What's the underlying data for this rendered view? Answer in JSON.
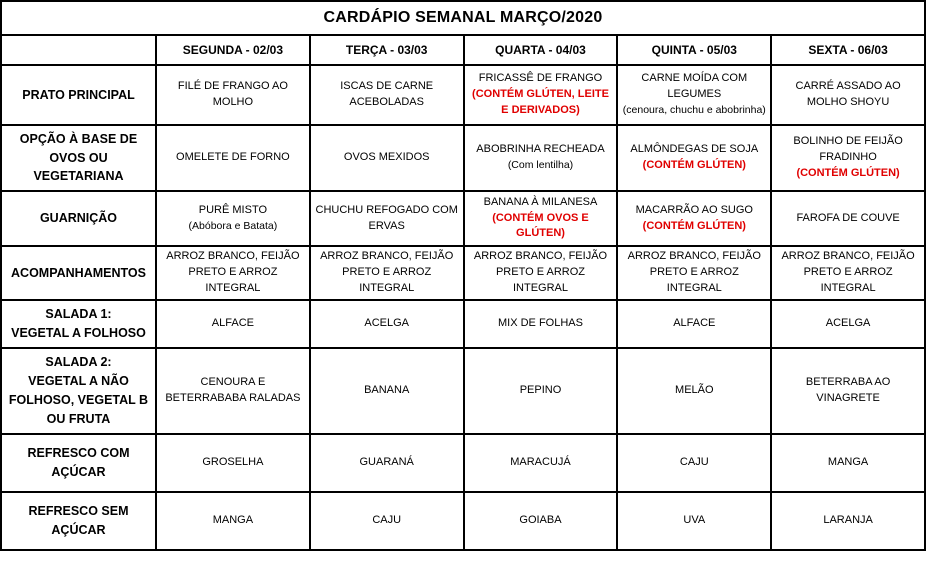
{
  "title": "CARDÁPIO SEMANAL MARÇO/2020",
  "colors": {
    "alert_red": "#e00000",
    "border_black": "#000000",
    "background": "#ffffff"
  },
  "table": {
    "day_headers": [
      "SEGUNDA - 02/03",
      "TERÇA - 03/03",
      "QUARTA - 04/03",
      "QUINTA - 05/03",
      "SEXTA - 06/03"
    ],
    "rows": [
      {
        "label_lines": [
          "PRATO PRINCIPAL"
        ],
        "cells": [
          [
            {
              "text": "FILÉ DE FRANGO AO MOLHO"
            }
          ],
          [
            {
              "text": "ISCAS DE CARNE ACEBOLADAS"
            }
          ],
          [
            {
              "text": "FRICASSÊ DE FRANGO"
            },
            {
              "text": "(CONTÉM GLÚTEN, LEITE E DERIVADOS)",
              "style": "red"
            }
          ],
          [
            {
              "text": "CARNE MOÍDA COM LEGUMES"
            },
            {
              "text": "(cenoura, chuchu e abobrinha)",
              "style": "small"
            }
          ],
          [
            {
              "text": "CARRÉ ASSADO AO MOLHO SHOYU"
            }
          ]
        ]
      },
      {
        "label_lines": [
          "OPÇÃO À BASE DE",
          "OVOS OU VEGETARIANA"
        ],
        "cells": [
          [
            {
              "text": "OMELETE DE FORNO"
            }
          ],
          [
            {
              "text": "OVOS MEXIDOS"
            }
          ],
          [
            {
              "text": "ABOBRINHA RECHEADA"
            },
            {
              "text": "(Com lentilha)",
              "style": "small"
            }
          ],
          [
            {
              "text": "ALMÔNDEGAS DE SOJA"
            },
            {
              "text": "(CONTÉM GLÚTEN)",
              "style": "red"
            }
          ],
          [
            {
              "text": "BOLINHO DE FEIJÃO FRADINHO"
            },
            {
              "text": "(CONTÉM GLÚTEN)",
              "style": "red"
            }
          ]
        ]
      },
      {
        "label_lines": [
          "GUARNIÇÃO"
        ],
        "cells": [
          [
            {
              "text": "PURÊ MISTO"
            },
            {
              "text": "(Abóbora e Batata)",
              "style": "small"
            }
          ],
          [
            {
              "text": "CHUCHU REFOGADO COM ERVAS"
            }
          ],
          [
            {
              "text": "BANANA À MILANESA"
            },
            {
              "text": "(CONTÉM OVOS E GLÚTEN)",
              "style": "red"
            }
          ],
          [
            {
              "text": "MACARRÃO AO SUGO"
            },
            {
              "text": "(CONTÉM GLÚTEN)",
              "style": "red"
            }
          ],
          [
            {
              "text": "FAROFA DE COUVE"
            }
          ]
        ]
      },
      {
        "label_lines": [
          "ACOMPANHAMENTOS"
        ],
        "cells": [
          [
            {
              "text": "ARROZ BRANCO, FEIJÃO PRETO E ARROZ INTEGRAL"
            }
          ],
          [
            {
              "text": "ARROZ BRANCO, FEIJÃO PRETO E ARROZ INTEGRAL"
            }
          ],
          [
            {
              "text": "ARROZ BRANCO, FEIJÃO PRETO E ARROZ INTEGRAL"
            }
          ],
          [
            {
              "text": "ARROZ BRANCO, FEIJÃO PRETO E ARROZ INTEGRAL"
            }
          ],
          [
            {
              "text": "ARROZ BRANCO, FEIJÃO PRETO E ARROZ INTEGRAL"
            }
          ]
        ]
      },
      {
        "label_lines": [
          "SALADA 1:",
          "VEGETAL A FOLHOSO"
        ],
        "cells": [
          [
            {
              "text": "ALFACE"
            }
          ],
          [
            {
              "text": "ACELGA"
            }
          ],
          [
            {
              "text": "MIX DE FOLHAS"
            }
          ],
          [
            {
              "text": "ALFACE"
            }
          ],
          [
            {
              "text": "ACELGA"
            }
          ]
        ]
      },
      {
        "label_lines": [
          "SALADA 2:",
          "VEGETAL A NÃO",
          "FOLHOSO, VEGETAL B",
          "OU FRUTA"
        ],
        "cells": [
          [
            {
              "text": "CENOURA E BETERRABABA RALADAS"
            }
          ],
          [
            {
              "text": "BANANA"
            }
          ],
          [
            {
              "text": "PEPINO"
            }
          ],
          [
            {
              "text": "MELÃO"
            }
          ],
          [
            {
              "text": "BETERRABA AO VINAGRETE"
            }
          ]
        ]
      },
      {
        "label_lines": [
          "REFRESCO COM",
          "AÇÚCAR"
        ],
        "cells": [
          [
            {
              "text": "GROSELHA"
            }
          ],
          [
            {
              "text": "GUARANÁ"
            }
          ],
          [
            {
              "text": "MARACUJÁ"
            }
          ],
          [
            {
              "text": "CAJU"
            }
          ],
          [
            {
              "text": "MANGA"
            }
          ]
        ]
      },
      {
        "label_lines": [
          "REFRESCO SEM",
          "AÇÚCAR"
        ],
        "cells": [
          [
            {
              "text": "MANGA"
            }
          ],
          [
            {
              "text": "CAJU"
            }
          ],
          [
            {
              "text": "GOIABA"
            }
          ],
          [
            {
              "text": "UVA"
            }
          ],
          [
            {
              "text": "LARANJA"
            }
          ]
        ]
      }
    ]
  }
}
